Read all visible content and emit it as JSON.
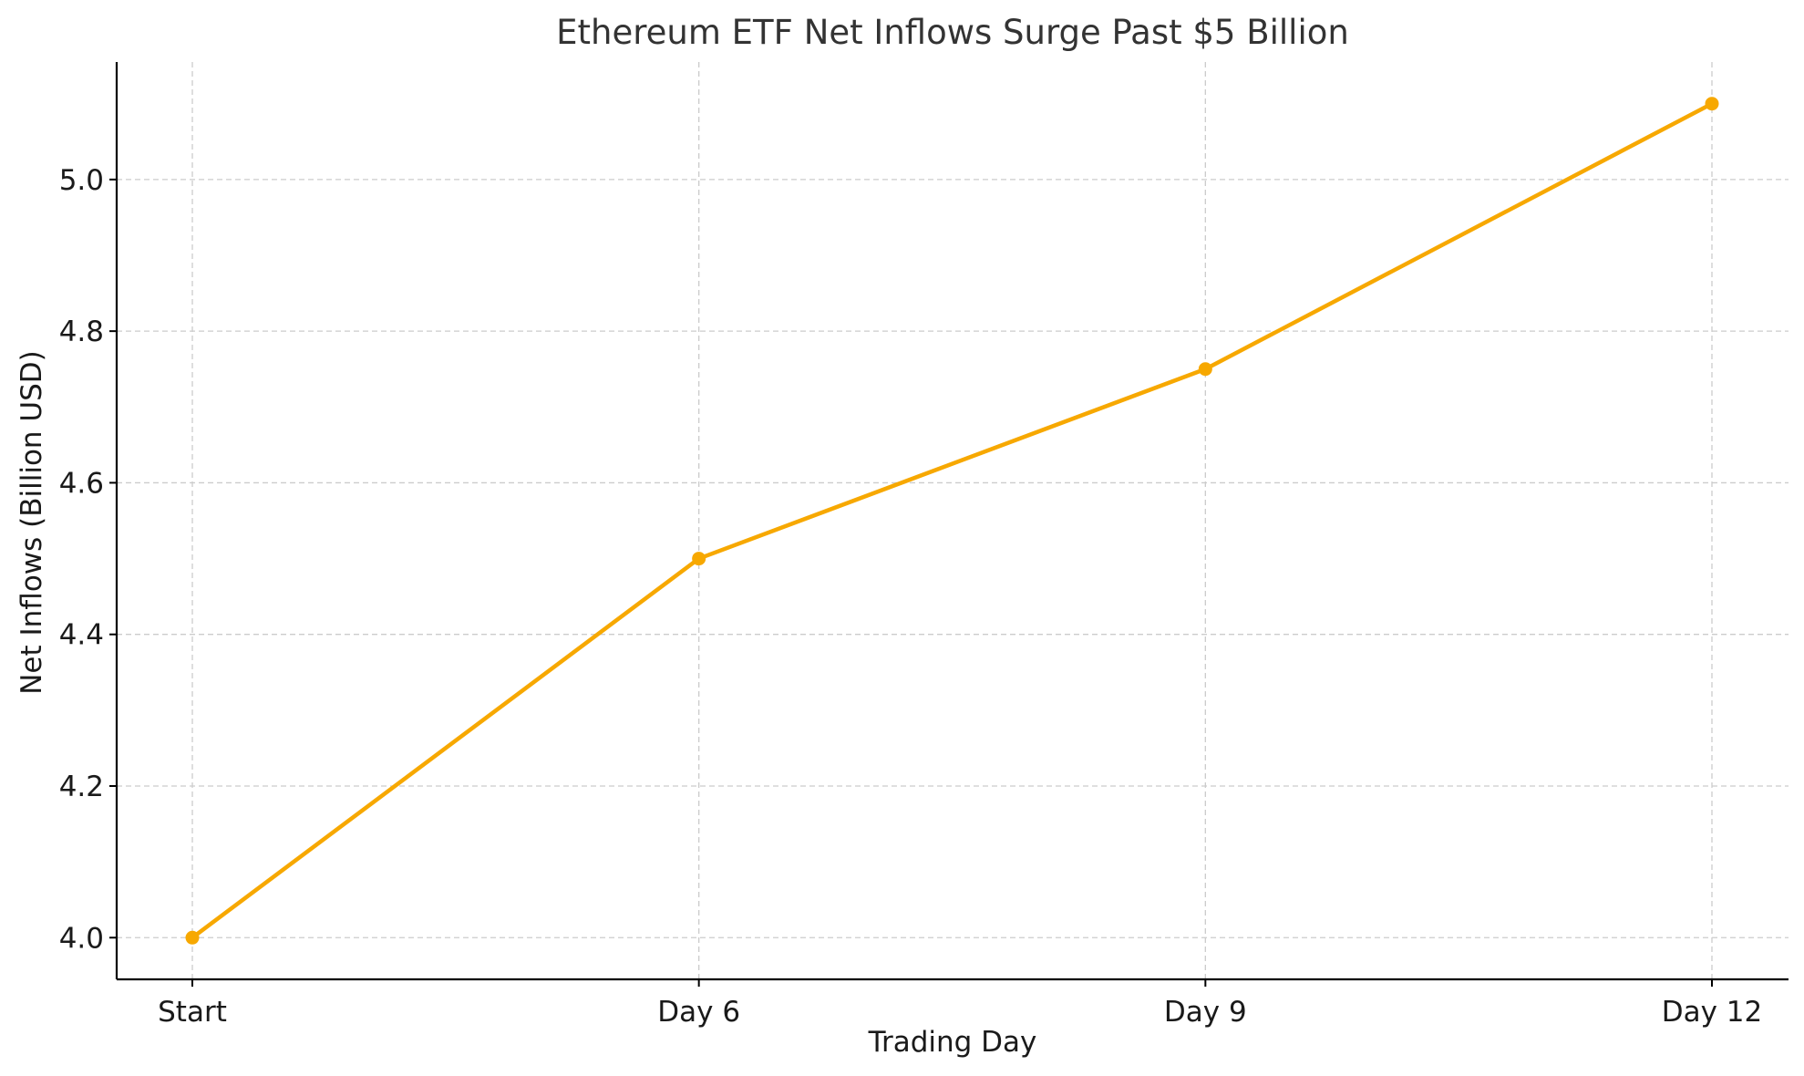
{
  "chart_data": {
    "type": "line",
    "title": "Ethereum ETF Net Inflows Surge Past $5 Billion",
    "xlabel": "Trading Day",
    "ylabel": "Net Inflows (Billion USD)",
    "categories": [
      "Start",
      "Day 6",
      "Day 9",
      "Day 12"
    ],
    "series": [
      {
        "values": [
          4.0,
          4.5,
          4.75,
          5.1
        ],
        "color": "#f7a800"
      }
    ],
    "ylim": [
      3.945,
      5.155
    ],
    "yticks": [
      4.0,
      4.2,
      4.4,
      4.6,
      4.8,
      5.0
    ],
    "ytick_labels": [
      "4.0",
      "4.2",
      "4.4",
      "4.6",
      "4.8",
      "5.0"
    ],
    "grid": true,
    "grid_style": "dashed",
    "legend": "none",
    "marker": "circle"
  }
}
